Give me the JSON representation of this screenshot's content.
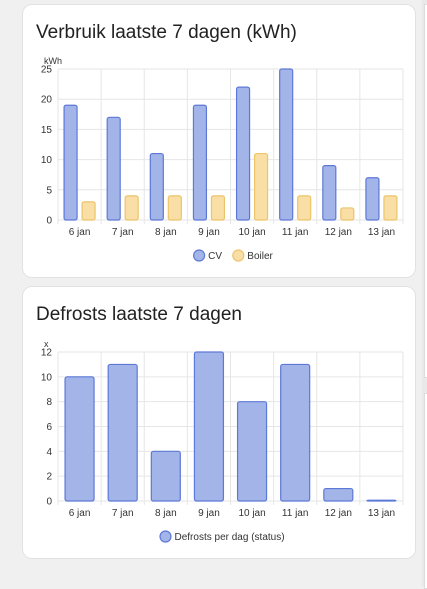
{
  "colors": {
    "cv_fill": "#a3b4e8",
    "cv_stroke": "#5d79d6",
    "boiler_fill": "#f9dfa5",
    "boiler_stroke": "#ecc46a",
    "grid": "#e6e6e6",
    "text": "#333333"
  },
  "cards": [
    {
      "title": "Verbruik laatste 7 dagen (kWh)",
      "chart_data": {
        "type": "bar",
        "title": "Verbruik laatste 7 dagen (kWh)",
        "ylabel": "kWh",
        "ylim": [
          0,
          25
        ],
        "yticks": [
          "0",
          "5",
          "10",
          "15",
          "20",
          "25"
        ],
        "categories": [
          "6 jan",
          "7 jan",
          "8 jan",
          "9 jan",
          "10 jan",
          "11 jan",
          "12 jan",
          "13 jan"
        ],
        "series": [
          {
            "name": "CV",
            "values": [
              19,
              17,
              11,
              19,
              22,
              25,
              9,
              7
            ]
          },
          {
            "name": "Boiler",
            "values": [
              3,
              4,
              4,
              4,
              11,
              4,
              2,
              4
            ]
          }
        ],
        "grid": true,
        "legend": "bottom"
      }
    },
    {
      "title": "Defrosts laatste 7 dagen",
      "chart_data": {
        "type": "bar",
        "title": "Defrosts laatste 7 dagen",
        "ylabel": "x",
        "ylim": [
          0,
          12
        ],
        "yticks": [
          "0",
          "2",
          "4",
          "6",
          "8",
          "10",
          "12"
        ],
        "categories": [
          "6 jan",
          "7 jan",
          "8 jan",
          "9 jan",
          "10 jan",
          "11 jan",
          "12 jan",
          "13 jan"
        ],
        "series": [
          {
            "name": "Defrosts per dag (status)",
            "values": [
              10,
              11,
              4,
              12,
              8,
              11,
              1,
              0
            ]
          }
        ],
        "grid": true,
        "legend": "bottom"
      }
    }
  ]
}
